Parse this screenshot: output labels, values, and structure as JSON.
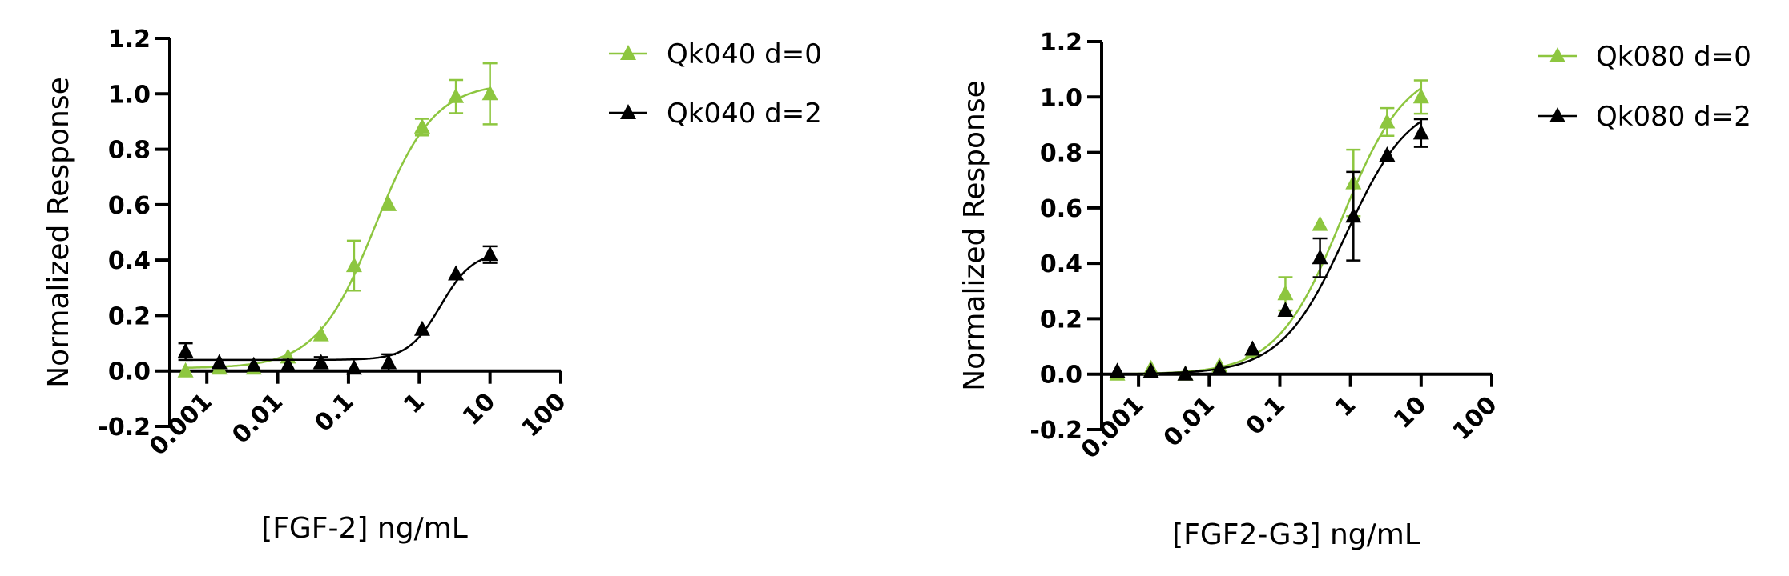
{
  "colors": {
    "green": "#8dc63f",
    "black": "#000000"
  },
  "chart_data": [
    {
      "type": "scatter",
      "title": "",
      "xlabel": "[FGF-2] ng/mL",
      "ylabel": "Normalized Response",
      "xscale": "log",
      "xlim": [
        0.0003,
        100
      ],
      "ylim": [
        -0.2,
        1.2
      ],
      "xticks": [
        "0.001",
        "0.01",
        "0.1",
        "1",
        "10",
        "100"
      ],
      "yticks": [
        "-0.2",
        "0.0",
        "0.2",
        "0.4",
        "0.6",
        "0.8",
        "1.0",
        "1.2"
      ],
      "fit_curves": true,
      "legend_position": "right",
      "series": [
        {
          "name": "Qk040 d=0",
          "color": "#8dc63f",
          "marker": "triangle",
          "x": [
            0.0005,
            0.0015,
            0.0046,
            0.014,
            0.041,
            0.12,
            0.37,
            1.1,
            3.3,
            10
          ],
          "y": [
            0.0,
            0.01,
            0.01,
            0.05,
            0.13,
            0.38,
            0.6,
            0.88,
            0.99,
            1.0
          ],
          "err": [
            0.0,
            0.0,
            0.0,
            0.0,
            0.0,
            0.09,
            0.0,
            0.03,
            0.06,
            0.11
          ],
          "fit": {
            "bottom": 0.01,
            "top": 1.04,
            "ec50": 0.24,
            "hill": 1.05
          }
        },
        {
          "name": "Qk040 d=2",
          "color": "#000000",
          "marker": "triangle",
          "x": [
            0.0005,
            0.0015,
            0.0046,
            0.014,
            0.041,
            0.12,
            0.37,
            1.1,
            3.3,
            10
          ],
          "y": [
            0.07,
            0.03,
            0.02,
            0.02,
            0.03,
            0.01,
            0.03,
            0.15,
            0.35,
            0.42
          ],
          "err": [
            0.03,
            0.0,
            0.0,
            0.0,
            0.02,
            0.0,
            0.03,
            0.0,
            0.0,
            0.03
          ],
          "fit": {
            "bottom": 0.04,
            "top": 0.43,
            "ec50": 2.0,
            "hill": 1.9
          }
        }
      ]
    },
    {
      "type": "scatter",
      "title": "",
      "xlabel": "[FGF2-G3] ng/mL",
      "ylabel": "Normalized Response",
      "xscale": "log",
      "xlim": [
        0.0003,
        100
      ],
      "ylim": [
        -0.2,
        1.2
      ],
      "xticks": [
        "0.001",
        "0.01",
        "0.1",
        "1",
        "10",
        "100"
      ],
      "yticks": [
        "-0.2",
        "0.0",
        "0.2",
        "0.4",
        "0.6",
        "0.8",
        "1.0",
        "1.2"
      ],
      "fit_curves": true,
      "legend_position": "right",
      "series": [
        {
          "name": "Qk080 d=0",
          "color": "#8dc63f",
          "marker": "triangle",
          "x": [
            0.0005,
            0.0015,
            0.0046,
            0.014,
            0.041,
            0.12,
            0.37,
            1.1,
            3.3,
            10
          ],
          "y": [
            0.0,
            0.02,
            0.0,
            0.03,
            0.08,
            0.29,
            0.54,
            0.69,
            0.91,
            1.0
          ],
          "err": [
            0.0,
            0.0,
            0.0,
            0.0,
            0.0,
            0.06,
            0.0,
            0.12,
            0.05,
            0.06
          ],
          "fit": {
            "bottom": 0.0,
            "top": 1.12,
            "ec50": 0.75,
            "hill": 0.95
          }
        },
        {
          "name": "Qk080 d=2",
          "color": "#000000",
          "marker": "triangle",
          "x": [
            0.0005,
            0.0015,
            0.0046,
            0.014,
            0.041,
            0.12,
            0.37,
            1.1,
            3.3,
            10
          ],
          "y": [
            0.01,
            0.01,
            0.0,
            0.02,
            0.09,
            0.23,
            0.42,
            0.57,
            0.79,
            0.87
          ],
          "err": [
            0.0,
            0.0,
            0.0,
            0.0,
            0.0,
            0.0,
            0.07,
            0.16,
            0.0,
            0.05
          ],
          "fit": {
            "bottom": 0.0,
            "top": 1.0,
            "ec50": 0.85,
            "hill": 0.95
          }
        }
      ]
    }
  ]
}
